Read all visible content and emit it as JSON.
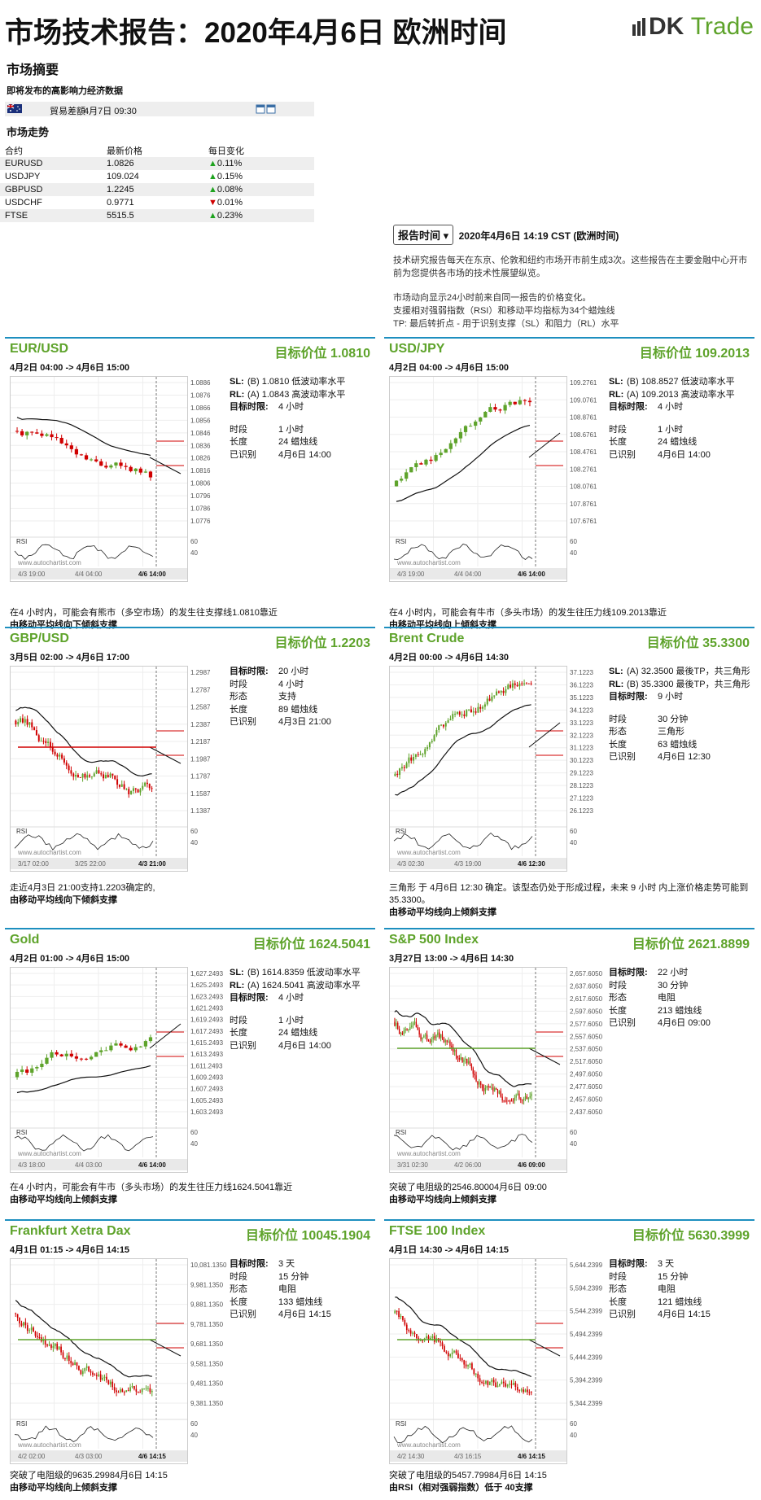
{
  "header": {
    "title": "市场技术报告：2020年4月6日 欧洲时间",
    "logo_text": "DK Trade"
  },
  "summary": {
    "heading": "市场摘要",
    "upcoming_label": "即将发布的高影响力经济数据",
    "event": {
      "name": "貿易差額",
      "time": "4月7日 09:30"
    },
    "trend_heading": "市场走势",
    "columns": [
      "合约",
      "最新价格",
      "每日变化"
    ],
    "rows": [
      {
        "symbol": "EURUSD",
        "price": "1.0826",
        "dir": "up",
        "change": "0.11%"
      },
      {
        "symbol": "USDJPY",
        "price": "109.024",
        "dir": "up",
        "change": "0.15%"
      },
      {
        "symbol": "GBPUSD",
        "price": "1.2245",
        "dir": "up",
        "change": "0.08%"
      },
      {
        "symbol": "USDCHF",
        "price": "0.9771",
        "dir": "down",
        "change": "0.01%"
      },
      {
        "symbol": "FTSE",
        "price": "5515.5",
        "dir": "up",
        "change": "0.23%"
      }
    ]
  },
  "report": {
    "button": "报告时间",
    "time": "2020年4月6日 14:19 CST (欧洲时间)",
    "para1": "技术研究报告每天在东京、伦敦和纽约市场开市前生成3次。这些报告在主要金融中心开市前为您提供各市场的技术性展望纵览。",
    "para2a": "市场动向显示24小时前来自同一报告的价格变化。",
    "para2b": "支援相对强弱指数（RSI）和移动平均指标为34个蜡烛线",
    "para2c": "TP: 最后转折点 - 用于识别支撑（SL）和阻力（RL）水平"
  },
  "colors": {
    "accent": "#1d8fbf",
    "green": "#5ea32b",
    "up": "#1fa31f",
    "down": "#d00000"
  },
  "panels": [
    {
      "name": "EUR/USD",
      "target": "目标价位 1.0810",
      "range": "4月2日 04:00 -> 4月6日 15:00",
      "rows": [
        {
          "k": "SL:",
          "v": "(B) 1.0810 低波动率水平"
        },
        {
          "k": "RL:",
          "v": "(A) 1.0843 高波动率水平"
        },
        {
          "k": "目标时限:",
          "v": "4 小时"
        },
        {
          "gap": true
        },
        {
          "k": "时段",
          "v": "1 小时"
        },
        {
          "k": "长度",
          "v": "24 蜡烛线"
        },
        {
          "k": "已识别",
          "v": "4月6日 14:00"
        }
      ],
      "foot1": "在4 小时内，可能会有熊市（多空市场）的发生往支撑线1.0810靠近",
      "foot2": "由移动平均线向下倾斜支撑",
      "yticks": [
        "1.0886",
        "1.0876",
        "1.0866",
        "1.0856",
        "1.0846",
        "1.0836",
        "1.0826",
        "1.0816",
        "1.0806",
        "1.0796",
        "1.0786",
        "1.0776"
      ],
      "xticks": [
        "4/3 19:00",
        "4/4 04:00",
        "4/6 14:00"
      ],
      "rsi_label": "RSI",
      "rsi_ticks": [
        "60",
        "40"
      ],
      "credit": "www.autochartist.com"
    },
    {
      "name": "USD/JPY",
      "target": "目标价位 109.2013",
      "range": "4月2日 04:00 -> 4月6日 15:00",
      "rows": [
        {
          "k": "SL:",
          "v": "(B) 108.8527 低波动率水平"
        },
        {
          "k": "RL:",
          "v": "(A) 109.2013 高波动率水平"
        },
        {
          "k": "目标时限:",
          "v": "4 小时"
        },
        {
          "gap": true
        },
        {
          "k": "时段",
          "v": "1 小时"
        },
        {
          "k": "长度",
          "v": "24 蜡烛线"
        },
        {
          "k": "已识别",
          "v": "4月6日 14:00"
        }
      ],
      "foot1": "在4 小时内，可能会有牛市（多头市场）的发生往压力线109.2013靠近",
      "foot2": "由移动平均线向上倾斜支撑",
      "yticks": [
        "109.2761",
        "109.0761",
        "108.8761",
        "108.6761",
        "108.4761",
        "108.2761",
        "108.0761",
        "107.8761",
        "107.6761"
      ],
      "xticks": [
        "4/3 19:00",
        "4/4 04:00",
        "4/6 14:00"
      ],
      "rsi_label": "RSI",
      "rsi_ticks": [
        "60",
        "40"
      ],
      "credit": "www.autochartist.com"
    },
    {
      "name": "GBP/USD",
      "target": "目标价位 1.2203",
      "range": "3月5日 02:00 -> 4月6日 17:00",
      "rows": [
        {
          "k": "目标时限:",
          "v": "20 小时"
        },
        {
          "k": "时段",
          "v": "4 小时"
        },
        {
          "k": "形态",
          "v": "支持"
        },
        {
          "k": "长度",
          "v": "89 蜡烛线"
        },
        {
          "k": "已识别",
          "v": "4月3日 21:00"
        }
      ],
      "foot1": "走近4月3日 21:00支持1.2203确定的,",
      "foot2": "由移动平均线向下倾斜支撑",
      "yticks": [
        "1.2987",
        "1.2787",
        "1.2587",
        "1.2387",
        "1.2187",
        "1.1987",
        "1.1787",
        "1.1587",
        "1.1387"
      ],
      "xticks": [
        "3/17 02:00",
        "3/25 22:00",
        "4/3 21:00"
      ],
      "rsi_label": "RSI",
      "rsi_ticks": [
        "60",
        "40"
      ],
      "credit": "www.autochartist.com"
    },
    {
      "name": "Brent Crude",
      "target": "目标价位 35.3300",
      "range": "4月2日 00:00 -> 4月6日 14:30",
      "rows": [
        {
          "k": "SL:",
          "v": "(A) 32.3500 最後TP，共三角形"
        },
        {
          "k": "RL:",
          "v": "(B) 35.3300 最後TP，共三角形"
        },
        {
          "k": "目标时限:",
          "v": "9 小时"
        },
        {
          "gap": true
        },
        {
          "k": "时段",
          "v": "30 分钟"
        },
        {
          "k": "形态",
          "v": "三角形"
        },
        {
          "k": "长度",
          "v": "63 蜡烛线"
        },
        {
          "k": "已识别",
          "v": "4月6日 12:30"
        }
      ],
      "foot1": "三角形 于 4月6日 12:30 确定。该型态仍处于形成过程，未来 9 小时 内上涨价格走势可能到35.3300。",
      "foot2": "由移动平均线向上倾斜支撑",
      "yticks": [
        "37.1223",
        "36.1223",
        "35.1223",
        "34.1223",
        "33.1223",
        "32.1223",
        "31.1223",
        "30.1223",
        "29.1223",
        "28.1223",
        "27.1223",
        "26.1223"
      ],
      "xticks": [
        "4/3 02:30",
        "4/3 19:00",
        "4/6 12:30"
      ],
      "rsi_label": "RSI",
      "rsi_ticks": [
        "60",
        "40"
      ],
      "credit": "www.autochartist.com"
    },
    {
      "name": "Gold",
      "target": "目标价位 1624.5041",
      "range": "4月2日 01:00 -> 4月6日 15:00",
      "rows": [
        {
          "k": "SL:",
          "v": "(B) 1614.8359 低波动率水平"
        },
        {
          "k": "RL:",
          "v": "(A) 1624.5041 高波动率水平"
        },
        {
          "k": "目标时限:",
          "v": "4 小时"
        },
        {
          "gap": true
        },
        {
          "k": "时段",
          "v": "1 小时"
        },
        {
          "k": "长度",
          "v": "24 蜡烛线"
        },
        {
          "k": "已识别",
          "v": "4月6日 14:00"
        }
      ],
      "foot1": "在4 小时内，可能会有牛市（多头市场）的发生往压力线1624.5041靠近",
      "foot2": "由移动平均线向上倾斜支撑",
      "yticks": [
        "1,627.2493",
        "1,625.2493",
        "1,623.2493",
        "1,621.2493",
        "1,619.2493",
        "1,617.2493",
        "1,615.2493",
        "1,613.2493",
        "1,611.2493",
        "1,609.2493",
        "1,607.2493",
        "1,605.2493",
        "1,603.2493"
      ],
      "xticks": [
        "4/3 18:00",
        "4/4 03:00",
        "4/6 14:00"
      ],
      "rsi_label": "RSI",
      "rsi_ticks": [
        "60",
        "40"
      ],
      "credit": "www.autochartist.com"
    },
    {
      "name": "S&P 500 Index",
      "target": "目标价位 2621.8899",
      "range": "3月27日 13:00 -> 4月6日 14:30",
      "rows": [
        {
          "k": "目标时限:",
          "v": "22 小时"
        },
        {
          "k": "时段",
          "v": "30 分钟"
        },
        {
          "k": "形态",
          "v": "电阻"
        },
        {
          "k": "长度",
          "v": "213 蜡烛线"
        },
        {
          "k": "已识别",
          "v": "4月6日 09:00"
        }
      ],
      "foot1": "突破了电阻级的2546.80004月6日 09:00",
      "foot2": "由移动平均线向上倾斜支撑",
      "yticks": [
        "2,657.6050",
        "2,637.6050",
        "2,617.6050",
        "2,597.6050",
        "2,577.6050",
        "2,557.6050",
        "2,537.6050",
        "2,517.6050",
        "2,497.6050",
        "2,477.6050",
        "2,457.6050",
        "2,437.6050"
      ],
      "xticks": [
        "3/31 02:30",
        "4/2 06:00",
        "4/6 09:00"
      ],
      "rsi_label": "RSI",
      "rsi_ticks": [
        "60",
        "40"
      ],
      "credit": "www.autochartist.com"
    },
    {
      "name": "Frankfurt Xetra Dax",
      "target": "目标价位 10045.1904",
      "range": "4月1日 01:15 -> 4月6日 14:15",
      "rows": [
        {
          "k": "目标时限:",
          "v": "3 天"
        },
        {
          "k": "时段",
          "v": "15 分钟"
        },
        {
          "k": "形态",
          "v": "电阻"
        },
        {
          "k": "长度",
          "v": "133 蜡烛线"
        },
        {
          "k": "已识别",
          "v": "4月6日 14:15"
        }
      ],
      "foot1": "突破了电阻级的9635.29984月6日 14:15",
      "foot2": "由移动平均线向上倾斜支撑",
      "yticks": [
        "10,081.1350",
        "9,981.1350",
        "9,881.1350",
        "9,781.1350",
        "9,681.1350",
        "9,581.1350",
        "9,481.1350",
        "9,381.1350"
      ],
      "xticks": [
        "4/2 02:00",
        "4/3 03:00",
        "4/6 14:15"
      ],
      "rsi_label": "RSI",
      "rsi_ticks": [
        "60",
        "40"
      ],
      "credit": "www.autochartist.com"
    },
    {
      "name": "FTSE 100 Index",
      "target": "目标价位 5630.3999",
      "range": "4月1日 14:30 -> 4月6日 14:15",
      "rows": [
        {
          "k": "目标时限:",
          "v": "3 天"
        },
        {
          "k": "时段",
          "v": "15 分钟"
        },
        {
          "k": "形态",
          "v": "电阻"
        },
        {
          "k": "长度",
          "v": "121 蜡烛线"
        },
        {
          "k": "已识别",
          "v": "4月6日 14:15"
        }
      ],
      "foot1": "突破了电阻级的5457.79984月6日 14:15",
      "foot2": "由RSI（相对强弱指数）低于 40支撑",
      "yticks": [
        "5,644.2399",
        "5,594.2399",
        "5,544.2399",
        "5,494.2399",
        "5,444.2399",
        "5,394.2399",
        "5,344.2399"
      ],
      "xticks": [
        "4/2 14:30",
        "4/3 16:15",
        "4/6 14:15"
      ],
      "rsi_label": "RSI",
      "rsi_ticks": [
        "60",
        "40"
      ],
      "credit": "www.autochartist.com"
    }
  ]
}
